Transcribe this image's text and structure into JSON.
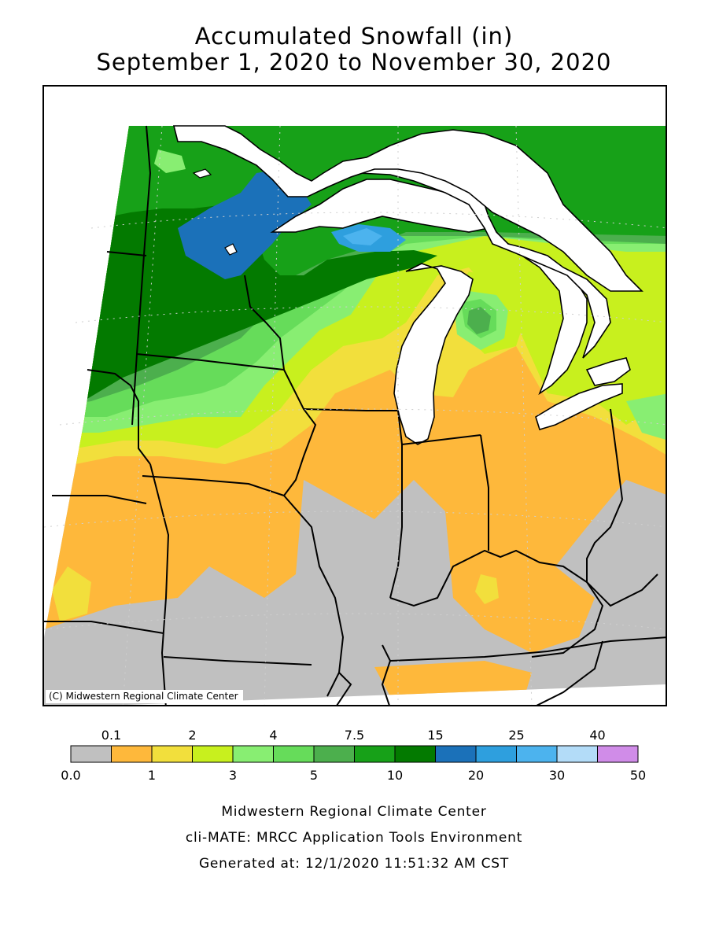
{
  "title_line1": "Accumulated Snowfall (in)",
  "title_line2": "September 1, 2020 to November 30, 2020",
  "map_credit": "(C) Midwestern Regional Climate Center",
  "legend": {
    "bins": [
      {
        "color": "#c0c0c0"
      },
      {
        "color": "#feb83b"
      },
      {
        "color": "#f2df3c"
      },
      {
        "color": "#c8f01e"
      },
      {
        "color": "#88ee72"
      },
      {
        "color": "#66dc5a"
      },
      {
        "color": "#4caf4d"
      },
      {
        "color": "#17a118"
      },
      {
        "color": "#037a00"
      },
      {
        "color": "#1b71b9"
      },
      {
        "color": "#2e9fde"
      },
      {
        "color": "#4cb3ee"
      },
      {
        "color": "#b3dcf8"
      },
      {
        "color": "#d08ce8"
      }
    ],
    "labels_top": [
      "0.1",
      "2",
      "4",
      "7.5",
      "15",
      "25",
      "40"
    ],
    "labels_bottom": [
      "0.0",
      "1",
      "3",
      "5",
      "10",
      "20",
      "30",
      "50"
    ]
  },
  "footer": {
    "line1": "Midwestern Regional Climate Center",
    "line2": "cli-MATE: MRCC Application Tools Environment",
    "line3": "Generated at: 12/1/2020 11:51:32 AM CST"
  }
}
